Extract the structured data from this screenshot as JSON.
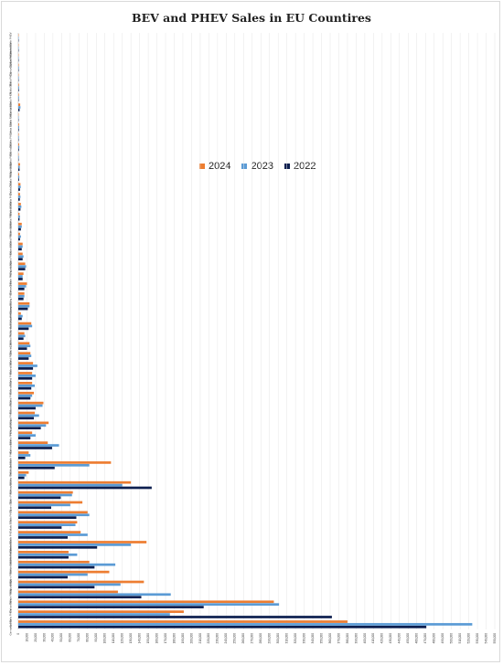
{
  "chart_data": {
    "type": "bar",
    "orientation": "horizontal",
    "title": "BEV and PHEV Sales in EU Countires",
    "legend_position": "middle",
    "grid": true,
    "x_ticks": [
      "0",
      "10,000",
      "20,000",
      "30,000",
      "40,000",
      "50,000",
      "60,000",
      "70,000",
      "80,000",
      "90,000",
      "100,000",
      "110,000",
      "120,000",
      "130,000",
      "140,000",
      "150,000",
      "160,000",
      "170,000",
      "180,000",
      "190,000",
      "200,000",
      "210,000",
      "220,000",
      "230,000",
      "240,000",
      "250,000",
      "260,000",
      "270,000",
      "280,000",
      "290,000",
      "300,000",
      "310,000",
      "320,000",
      "330,000",
      "340,000",
      "350,000",
      "360,000",
      "370,000",
      "380,000",
      "390,000",
      "400,000",
      "410,000",
      "420,000",
      "430,000",
      "440,000",
      "450,000",
      "460,000",
      "470,000",
      "480,000",
      "490,000",
      "500,000",
      "510,000",
      "520,000",
      "530,000",
      "540,000",
      "550,000"
    ],
    "xlim": [
      0,
      550000
    ],
    "categories": [
      "Germany BEV",
      "Germany PHEV",
      "France BEV",
      "France PHEV",
      "Belgium BEV",
      "Belgium PHEV",
      "Sweden BEV",
      "Sweden PHEV",
      "Netherlands BEV",
      "Netherlands PHEV",
      "Italy BEV",
      "Italy PHEV",
      "Spain BEV",
      "Spain PHEV",
      "Norway BEV",
      "Norway PHEV",
      "Denmark BEV",
      "Denmark PHEV",
      "Austria BEV",
      "Austria PHEV",
      "Portugal BEV",
      "Portugal PHEV",
      "Poland BEV",
      "Poland PHEV",
      "Finland BEV",
      "Finland PHEV",
      "Ireland BEV",
      "Ireland PHEV",
      "Czechia BEV",
      "Czechia PHEV",
      "Romania BEV",
      "Romania PHEV",
      "Luxembourg BEV",
      "Luxembourg PHEV",
      "Greece BEV",
      "Greece PHEV",
      "Hungary BEV",
      "Hungary PHEV",
      "Iceland BEV",
      "Iceland PHEV",
      "Slovenia BEV",
      "Slovenia PHEV",
      "Slovakia BEV",
      "Slovakia PHEV",
      "Croatia BEV",
      "Croatia PHEV",
      "Bulgaria BEV",
      "Bulgaria PHEV",
      "Estonia BEV",
      "Estonia PHEV",
      "Latvia BEV",
      "Latvia PHEV",
      "Lithuania BEV",
      "Lithuania PHEV",
      "Malta BEV",
      "Malta PHEV",
      "Cyprus BEV",
      "Cyprus PHEV",
      "Liechtenstein BEV",
      "Liechtenstein PHEV"
    ],
    "series": [
      {
        "name": "2024",
        "color": "#ED7D31",
        "values": [
          380000,
          191000,
          295000,
          115000,
          145000,
          105000,
          82000,
          58000,
          148000,
          72000,
          68000,
          80000,
          74000,
          63000,
          130000,
          12000,
          107000,
          12000,
          34000,
          16000,
          35000,
          19000,
          29000,
          18000,
          16000,
          16000,
          17000,
          14000,
          13000,
          7000,
          15000,
          3000,
          13000,
          7000,
          10000,
          6000,
          8000,
          5000,
          5000,
          2000,
          4000,
          1500,
          3000,
          2000,
          2500,
          1000,
          2000,
          500,
          1000,
          600,
          900,
          400,
          2200,
          700,
          800,
          500,
          600,
          400,
          300,
          200
        ]
      },
      {
        "name": "2023",
        "color": "#5B9BD5",
        "values": [
          524000,
          175000,
          301000,
          176000,
          118000,
          80000,
          112000,
          68000,
          130000,
          80000,
          66000,
          82000,
          60000,
          62000,
          120000,
          9000,
          82000,
          14000,
          47000,
          20000,
          32000,
          24000,
          28000,
          16000,
          19000,
          20000,
          22000,
          15000,
          14000,
          8000,
          16000,
          5000,
          13000,
          7000,
          9000,
          5000,
          9000,
          6000,
          5000,
          3000,
          4000,
          2000,
          3500,
          2500,
          2800,
          1200,
          1700,
          700,
          1200,
          700,
          1000,
          500,
          2500,
          800,
          900,
          600,
          700,
          400,
          400,
          200
        ]
      },
      {
        "name": "2022",
        "color": "#0D1F4F",
        "values": [
          471000,
          362000,
          214000,
          142000,
          88000,
          57000,
          88000,
          58000,
          91000,
          57000,
          50000,
          67000,
          38000,
          49000,
          154000,
          7000,
          42000,
          8000,
          39000,
          14000,
          26000,
          18000,
          20000,
          14000,
          15000,
          16000,
          17000,
          12000,
          10000,
          6000,
          12000,
          4000,
          11000,
          6000,
          7000,
          5000,
          8000,
          5000,
          4000,
          2000,
          3000,
          1500,
          2500,
          1800,
          2000,
          900,
          1500,
          500,
          800,
          500,
          700,
          300,
          1500,
          500,
          700,
          400,
          500,
          300,
          300,
          200
        ]
      }
    ]
  }
}
